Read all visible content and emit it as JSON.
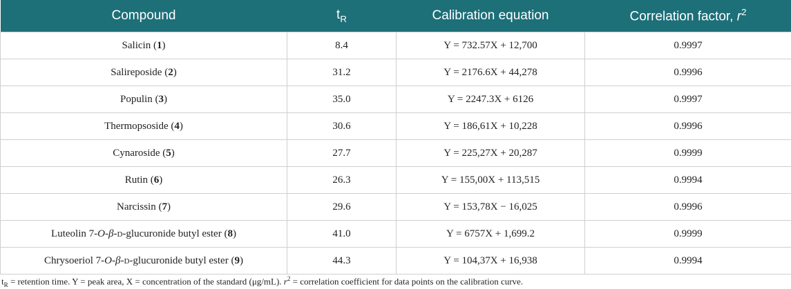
{
  "table": {
    "header": [
      [
        {
          "text": "Compound"
        }
      ],
      [
        {
          "text": "t"
        },
        {
          "text": "R",
          "sub": true
        }
      ],
      [
        {
          "text": "Calibration equation"
        }
      ],
      [
        {
          "text": "Correlation factor, "
        },
        {
          "text": "r",
          "italic": true
        },
        {
          "text": "2",
          "sup": true
        }
      ]
    ],
    "rows": [
      [
        [
          {
            "text": "Salicin ("
          },
          {
            "text": "1",
            "bold": true
          },
          {
            "text": ")"
          }
        ],
        [
          {
            "text": "8.4"
          }
        ],
        [
          {
            "text": "Y = 732.57X + 12,700"
          }
        ],
        [
          {
            "text": "0.9997"
          }
        ]
      ],
      [
        [
          {
            "text": "Salireposide ("
          },
          {
            "text": "2",
            "bold": true
          },
          {
            "text": ")"
          }
        ],
        [
          {
            "text": "31.2"
          }
        ],
        [
          {
            "text": "Y = 2176.6X + 44,278"
          }
        ],
        [
          {
            "text": "0.9996"
          }
        ]
      ],
      [
        [
          {
            "text": "Populin ("
          },
          {
            "text": "3",
            "bold": true
          },
          {
            "text": ")"
          }
        ],
        [
          {
            "text": "35.0"
          }
        ],
        [
          {
            "text": "Y = 2247.3X + 6126"
          }
        ],
        [
          {
            "text": "0.9997"
          }
        ]
      ],
      [
        [
          {
            "text": "Thermopsoside ("
          },
          {
            "text": "4",
            "bold": true
          },
          {
            "text": ")"
          }
        ],
        [
          {
            "text": "30.6"
          }
        ],
        [
          {
            "text": "Y = 186,61X + 10,228"
          }
        ],
        [
          {
            "text": "0.9996"
          }
        ]
      ],
      [
        [
          {
            "text": "Cynaroside ("
          },
          {
            "text": "5",
            "bold": true
          },
          {
            "text": ")"
          }
        ],
        [
          {
            "text": "27.7"
          }
        ],
        [
          {
            "text": "Y = 225,27X + 20,287"
          }
        ],
        [
          {
            "text": "0.9999"
          }
        ]
      ],
      [
        [
          {
            "text": "Rutin ("
          },
          {
            "text": "6",
            "bold": true
          },
          {
            "text": ")"
          }
        ],
        [
          {
            "text": "26.3"
          }
        ],
        [
          {
            "text": "Y = 155,00X + 113,515"
          }
        ],
        [
          {
            "text": "0.9994"
          }
        ]
      ],
      [
        [
          {
            "text": "Narcissin ("
          },
          {
            "text": "7",
            "bold": true
          },
          {
            "text": ")"
          }
        ],
        [
          {
            "text": "29.6"
          }
        ],
        [
          {
            "text": "Y = 153,78X − 16,025"
          }
        ],
        [
          {
            "text": "0.9996"
          }
        ]
      ],
      [
        [
          {
            "text": "Luteolin 7-"
          },
          {
            "text": "O",
            "italic": true
          },
          {
            "text": "-"
          },
          {
            "text": "β",
            "italic": true
          },
          {
            "text": "-"
          },
          {
            "text": "D",
            "smallcaps": true
          },
          {
            "text": "-glucuronide butyl ester ("
          },
          {
            "text": "8",
            "bold": true
          },
          {
            "text": ")"
          }
        ],
        [
          {
            "text": "41.0"
          }
        ],
        [
          {
            "text": "Y = 6757X + 1,699.2"
          }
        ],
        [
          {
            "text": "0.9999"
          }
        ]
      ],
      [
        [
          {
            "text": "Chrysoeriol 7-"
          },
          {
            "text": "O",
            "italic": true
          },
          {
            "text": "-"
          },
          {
            "text": "β",
            "italic": true
          },
          {
            "text": "-"
          },
          {
            "text": "D",
            "smallcaps": true
          },
          {
            "text": "-glucuronide butyl ester ("
          },
          {
            "text": "9",
            "bold": true
          },
          {
            "text": ")"
          }
        ],
        [
          {
            "text": "44.3"
          }
        ],
        [
          {
            "text": "Y = 104,37X + 16,938"
          }
        ],
        [
          {
            "text": "0.9994"
          }
        ]
      ]
    ]
  },
  "footnote": [
    {
      "text": "t"
    },
    {
      "text": "R",
      "sub": true
    },
    {
      "text": " = retention time. Y = peak area, X = concentration of the standard (μg/mL). "
    },
    {
      "text": "r",
      "italic": true
    },
    {
      "text": "2",
      "sup": true
    },
    {
      "text": " = correlation coefficient for data points on the calibration curve."
    }
  ]
}
